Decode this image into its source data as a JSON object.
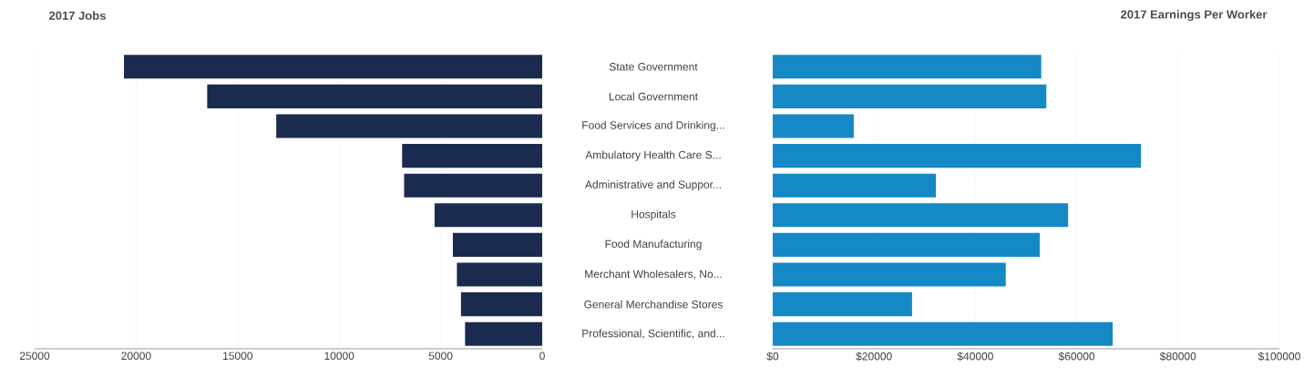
{
  "chart_data": [
    {
      "type": "bar",
      "orientation": "horizontal",
      "title": "2017 Jobs",
      "categories": [
        "State Government",
        "Local Government",
        "Food Services and Drinking...",
        "Ambulatory Health Care S...",
        "Administrative and Suppor...",
        "Hospitals",
        "Food Manufacturing",
        "Merchant Wholesalers, No...",
        "General Merchandise Stores",
        "Professional, Scientific, and..."
      ],
      "values": [
        20600,
        16500,
        13100,
        6900,
        6800,
        5300,
        4400,
        4200,
        4000,
        3800
      ],
      "color": "#1b2a4f",
      "xlim": [
        25000,
        0
      ],
      "xticks": [
        25000,
        20000,
        15000,
        10000,
        5000,
        0
      ],
      "grid": "x"
    },
    {
      "type": "bar",
      "orientation": "horizontal",
      "title": "2017 Earnings Per Worker",
      "categories": [
        null,
        null,
        null,
        null,
        null,
        null,
        null,
        null,
        null,
        null
      ],
      "values": [
        53000,
        54000,
        16000,
        72700,
        32200,
        58300,
        52700,
        46000,
        27500,
        67100
      ],
      "color": "#1589c6",
      "xlim": [
        0,
        100000
      ],
      "xticks": [
        {
          "value": 0,
          "label": "$0"
        },
        {
          "value": 20000,
          "label": "$20000"
        },
        {
          "value": 40000,
          "label": "$40000"
        },
        {
          "value": 60000,
          "label": "$60000"
        },
        {
          "value": 80000,
          "label": "$80000"
        },
        {
          "value": 100000,
          "label": "$100000"
        }
      ],
      "grid": "x"
    }
  ]
}
